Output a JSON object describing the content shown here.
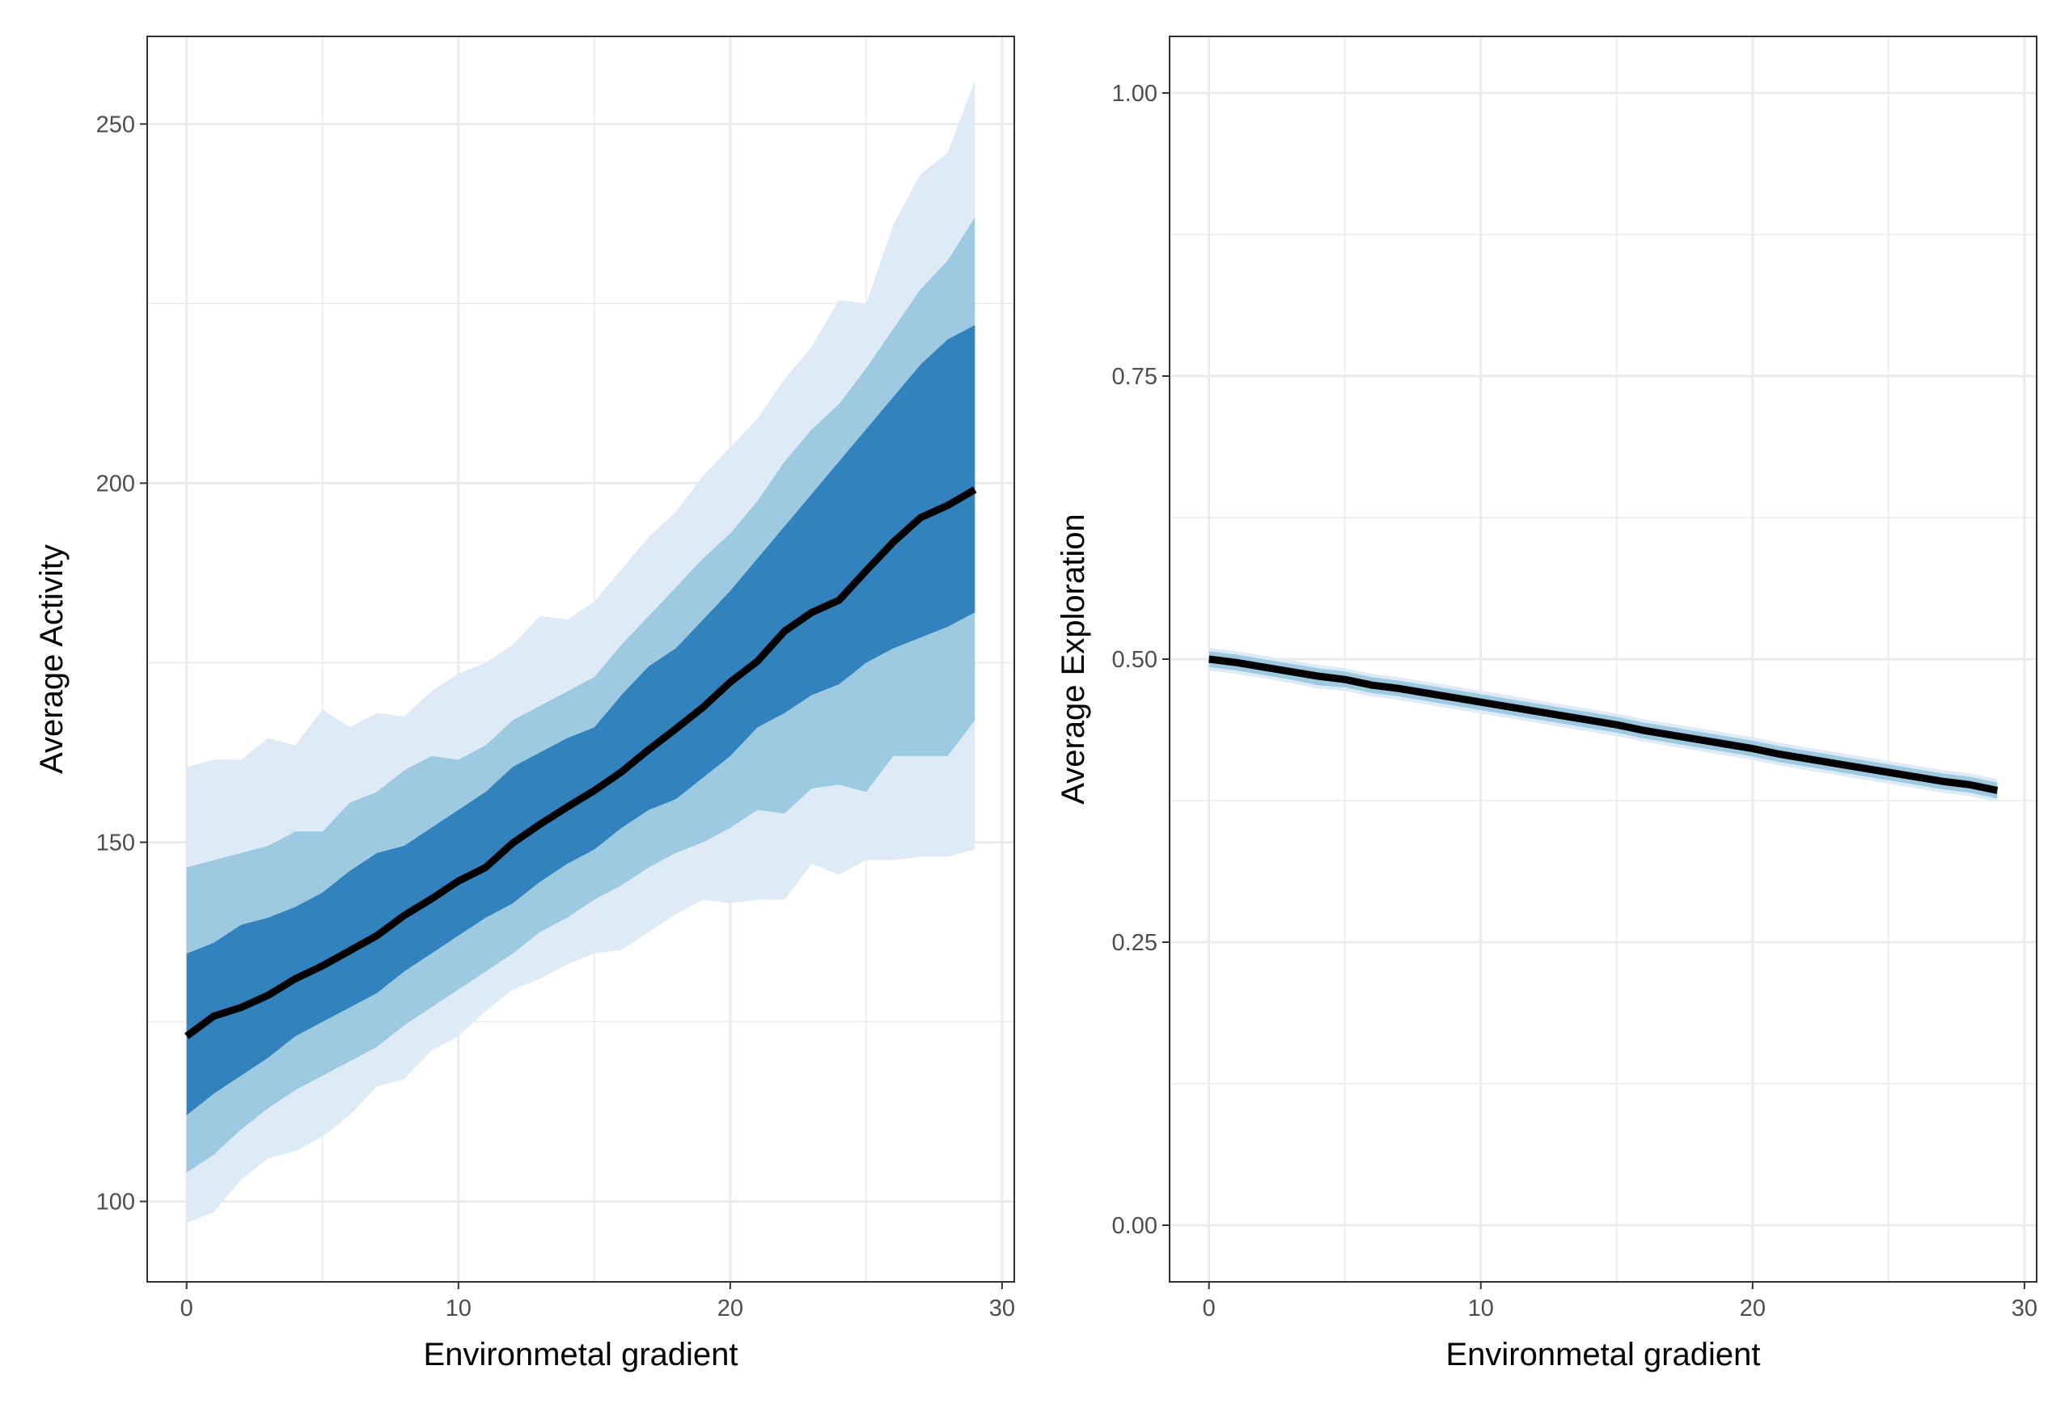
{
  "chart_data": [
    {
      "type": "area",
      "xlabel": "Environmetal gradient",
      "ylabel": "Average Activity",
      "xlim": [
        -1.45,
        30.45
      ],
      "ylim": [
        88.8,
        262.2
      ],
      "x_ticks": [
        0,
        10,
        20,
        30
      ],
      "y_ticks": [
        100,
        150,
        200,
        250
      ],
      "x_tick_labels": [
        "0",
        "10",
        "20",
        "30"
      ],
      "y_tick_labels": [
        "100",
        "150",
        "200",
        "250"
      ],
      "grid": true,
      "colors": {
        "band_outer": "#deebf7",
        "band_middle": "#9ecae1",
        "band_inner": "#3182bd",
        "line": "#000000"
      },
      "x": [
        0,
        1,
        2,
        3,
        4,
        5,
        6,
        7,
        8,
        9,
        10,
        11,
        12,
        13,
        14,
        15,
        16,
        17,
        18,
        19,
        20,
        21,
        22,
        23,
        24,
        25,
        26,
        27,
        28,
        29
      ],
      "series": [
        {
          "role": "median",
          "values": [
            123,
            125.8,
            127,
            128.7,
            131,
            132.8,
            134.9,
            137,
            139.8,
            142.1,
            144.6,
            146.5,
            149.9,
            152.5,
            154.9,
            157.2,
            159.8,
            162.9,
            165.8,
            168.8,
            172.3,
            175.2,
            179.4,
            182,
            183.7,
            187.8,
            191.8,
            195.2,
            196.9,
            199.1
          ]
        },
        {
          "role": "inner-band",
          "lower": [
            112,
            115,
            117.5,
            120,
            123,
            125,
            127,
            129,
            132,
            134.5,
            137,
            139.5,
            141.5,
            144.5,
            147,
            149,
            152,
            154.5,
            156,
            159,
            162,
            166,
            168,
            170.5,
            172,
            175,
            177,
            178.5,
            180,
            182
          ],
          "upper": [
            134.5,
            136,
            138.5,
            139.5,
            141,
            143,
            146,
            148.5,
            149.5,
            152,
            154.5,
            157,
            160.5,
            162.5,
            164.5,
            166,
            170.5,
            174.5,
            177,
            181,
            185,
            189.5,
            194,
            198.5,
            203,
            207.5,
            212,
            216.5,
            220,
            222
          ]
        },
        {
          "role": "middle-band",
          "lower": [
            104,
            106.5,
            110,
            113,
            115.5,
            117.5,
            119.5,
            121.5,
            124.5,
            127,
            129.5,
            132,
            134.5,
            137.5,
            139.5,
            142,
            144,
            146.5,
            148.5,
            150,
            152,
            154.5,
            154,
            157.5,
            158,
            157,
            162,
            162,
            162,
            167
          ]
        },
        {
          "role": "middle-band",
          "upper": [
            146.5,
            147.5,
            148.5,
            149.5,
            151.5,
            151.5,
            155.5,
            157,
            160,
            162,
            161.5,
            163.5,
            167,
            169,
            171,
            173,
            177.5,
            181.5,
            185.5,
            189.5,
            193,
            197.5,
            203,
            207.5,
            211,
            216,
            221.5,
            227,
            231,
            237
          ]
        },
        {
          "role": "outer-band",
          "lower": [
            97,
            98.5,
            103,
            106,
            107,
            109,
            112,
            116,
            117,
            121,
            123,
            126.5,
            129.5,
            131,
            133,
            134.5,
            135,
            137.5,
            140,
            142,
            141.5,
            142,
            142,
            147,
            145.5,
            147.5,
            147.5,
            148,
            148,
            149
          ],
          "upper": [
            160.5,
            161.5,
            161.5,
            164.5,
            163.5,
            168.5,
            166,
            168,
            167.5,
            171,
            173.5,
            175,
            177.5,
            181.5,
            181,
            183.5,
            188,
            192.5,
            196,
            201,
            205,
            209,
            214.5,
            219,
            225.5,
            225,
            236,
            243,
            246,
            256
          ]
        }
      ]
    },
    {
      "type": "area",
      "xlabel": "Environmetal gradient",
      "ylabel": "Average Exploration",
      "xlim": [
        -1.45,
        30.45
      ],
      "ylim": [
        -0.05,
        1.05
      ],
      "x_ticks": [
        0,
        10,
        20,
        30
      ],
      "y_ticks": [
        0,
        0.25,
        0.5,
        0.75,
        1
      ],
      "x_tick_labels": [
        "0",
        "10",
        "20",
        "30"
      ],
      "y_tick_labels": [
        "0.00",
        "0.25",
        "0.50",
        "0.75",
        "1.00"
      ],
      "grid": true,
      "colors": {
        "band_outer": "#deebf7",
        "band_middle": "#9ecae1",
        "band_inner": "#3182bd",
        "line": "#000000"
      },
      "x": [
        0,
        1,
        2,
        3,
        4,
        5,
        6,
        7,
        8,
        9,
        10,
        11,
        12,
        13,
        14,
        15,
        16,
        17,
        18,
        19,
        20,
        21,
        22,
        23,
        24,
        25,
        26,
        27,
        28,
        29
      ],
      "series": [
        {
          "role": "median",
          "values": [
            0.5,
            0.497,
            0.493,
            0.489,
            0.485,
            0.482,
            0.477,
            0.474,
            0.47,
            0.466,
            0.462,
            0.458,
            0.454,
            0.45,
            0.446,
            0.442,
            0.437,
            0.433,
            0.429,
            0.425,
            0.421,
            0.416,
            0.412,
            0.408,
            0.404,
            0.4,
            0.396,
            0.392,
            0.389,
            0.384
          ]
        },
        {
          "role": "inner-band",
          "lower": [
            0.497,
            0.494,
            0.49,
            0.486,
            0.482,
            0.479,
            0.474,
            0.471,
            0.467,
            0.463,
            0.459,
            0.455,
            0.451,
            0.447,
            0.443,
            0.439,
            0.434,
            0.43,
            0.426,
            0.422,
            0.418,
            0.413,
            0.409,
            0.405,
            0.401,
            0.397,
            0.393,
            0.389,
            0.386,
            0.381
          ],
          "upper": [
            0.503,
            0.5,
            0.496,
            0.492,
            0.488,
            0.485,
            0.48,
            0.477,
            0.473,
            0.469,
            0.465,
            0.461,
            0.457,
            0.453,
            0.449,
            0.445,
            0.44,
            0.436,
            0.432,
            0.428,
            0.424,
            0.419,
            0.415,
            0.411,
            0.407,
            0.403,
            0.399,
            0.395,
            0.392,
            0.387
          ]
        },
        {
          "role": "middle-band",
          "lower": [
            0.493,
            0.49,
            0.486,
            0.482,
            0.477,
            0.475,
            0.47,
            0.467,
            0.463,
            0.459,
            0.455,
            0.451,
            0.447,
            0.443,
            0.439,
            0.435,
            0.43,
            0.426,
            0.422,
            0.418,
            0.414,
            0.409,
            0.405,
            0.401,
            0.397,
            0.393,
            0.389,
            0.385,
            0.382,
            0.377
          ],
          "upper": [
            0.507,
            0.504,
            0.5,
            0.496,
            0.492,
            0.489,
            0.484,
            0.481,
            0.477,
            0.473,
            0.469,
            0.465,
            0.461,
            0.457,
            0.453,
            0.449,
            0.444,
            0.44,
            0.436,
            0.432,
            0.428,
            0.423,
            0.419,
            0.415,
            0.411,
            0.407,
            0.403,
            0.399,
            0.396,
            0.391
          ]
        },
        {
          "role": "outer-band",
          "lower": [
            0.49,
            0.487,
            0.483,
            0.479,
            0.474,
            0.472,
            0.467,
            0.464,
            0.46,
            0.456,
            0.452,
            0.448,
            0.444,
            0.44,
            0.436,
            0.432,
            0.427,
            0.423,
            0.419,
            0.415,
            0.411,
            0.406,
            0.402,
            0.398,
            0.394,
            0.39,
            0.386,
            0.382,
            0.379,
            0.374
          ],
          "upper": [
            0.51,
            0.507,
            0.503,
            0.499,
            0.495,
            0.492,
            0.487,
            0.484,
            0.48,
            0.476,
            0.472,
            0.468,
            0.464,
            0.46,
            0.456,
            0.452,
            0.447,
            0.443,
            0.439,
            0.435,
            0.431,
            0.426,
            0.422,
            0.418,
            0.414,
            0.41,
            0.406,
            0.402,
            0.399,
            0.394
          ]
        }
      ]
    }
  ]
}
